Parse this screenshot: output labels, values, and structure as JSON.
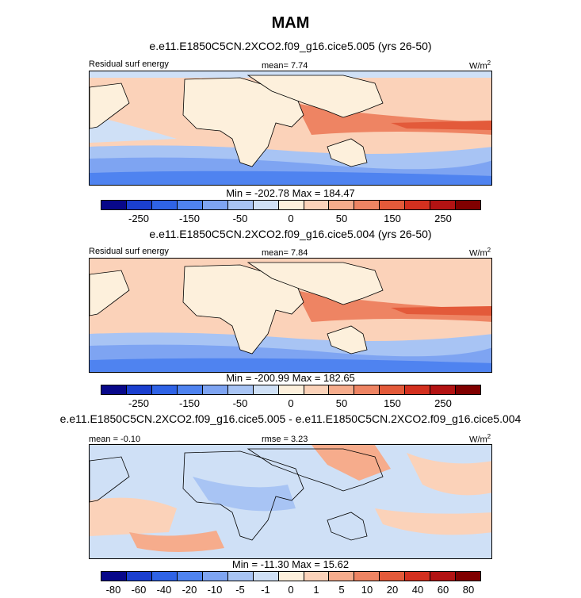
{
  "title": "MAM",
  "panels": [
    {
      "subtitle": "e.e11.E1850C5CN.2XCO2.f09_g16.cice5.005 (yrs 26-50)",
      "left_label": "Residual surf energy",
      "center_label": "mean=   7.74",
      "units": "W/m",
      "units_sup": "2",
      "minmax": "Min = -202.78 Max = 184.47",
      "ticks": [
        "-250",
        "-150",
        "-50",
        "0",
        "50",
        "150",
        "250"
      ]
    },
    {
      "subtitle": "e.e11.E1850C5CN.2XCO2.f09_g16.cice5.004 (yrs 26-50)",
      "left_label": "Residual surf energy",
      "center_label": "mean=   7.84",
      "units": "W/m",
      "units_sup": "2",
      "minmax": "Min = -200.99 Max = 182.65",
      "ticks": [
        "-250",
        "-150",
        "-50",
        "0",
        "50",
        "150",
        "250"
      ]
    },
    {
      "subtitle": "e.e11.E1850C5CN.2XCO2.f09_g16.cice5.005 - e.e11.E1850C5CN.2XCO2.f09_g16.cice5.004",
      "left_label": "mean =  -0.10",
      "center_label": "rmse =   3.23",
      "units": "W/m",
      "units_sup": "2",
      "minmax": "Min = -11.30 Max =  15.62",
      "ticks": [
        "-80",
        "-60",
        "-40",
        "-20",
        "-10",
        "-5",
        "-1",
        "0",
        "1",
        "5",
        "10",
        "20",
        "40",
        "60",
        "80"
      ]
    }
  ],
  "colorbar_colors": [
    "#08088a",
    "#1b3fcf",
    "#2f63e6",
    "#4f83f0",
    "#7ea4f2",
    "#a8c4f4",
    "#cfe0f6",
    "#fdf0dc",
    "#fbd2b9",
    "#f6ac8c",
    "#ee8463",
    "#e35a3a",
    "#d3301f",
    "#b31313",
    "#800000"
  ]
}
